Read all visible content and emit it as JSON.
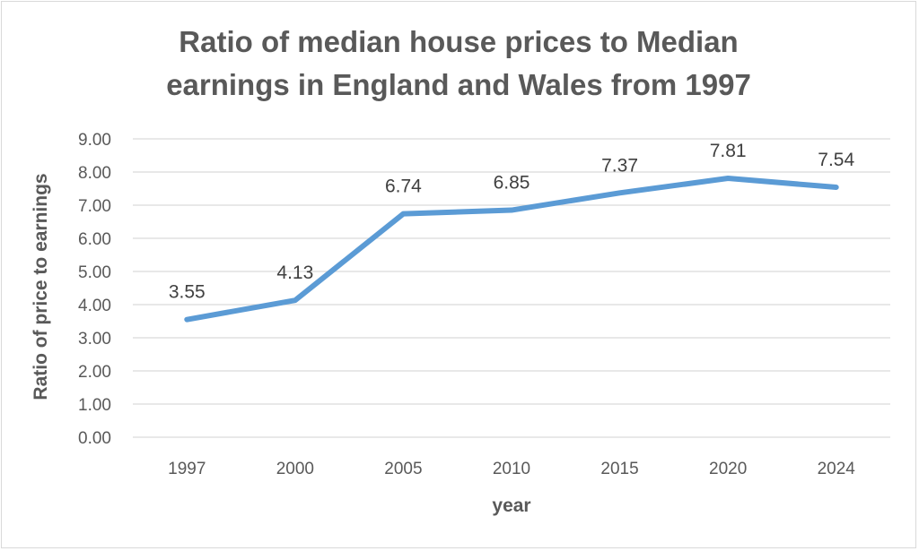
{
  "chart_data": {
    "type": "line",
    "title_lines": [
      "Ratio of median house prices to Median",
      "earnings in England and Wales from 1997"
    ],
    "xlabel": "year",
    "ylabel": "Ratio of price to earnings",
    "categories": [
      "1997",
      "2000",
      "2005",
      "2010",
      "2015",
      "2020",
      "2024"
    ],
    "series": [
      {
        "values": [
          3.55,
          4.13,
          6.74,
          6.85,
          7.37,
          7.81,
          7.54
        ]
      }
    ],
    "data_labels": [
      "3.55",
      "4.13",
      "6.74",
      "6.85",
      "7.37",
      "7.81",
      "7.54"
    ],
    "y_ticks": [
      "0.00",
      "1.00",
      "2.00",
      "3.00",
      "4.00",
      "5.00",
      "6.00",
      "7.00",
      "8.00",
      "9.00"
    ],
    "ylim": [
      0,
      9
    ],
    "grid": true,
    "legend": "none",
    "line_color": "#5b9bd5"
  }
}
